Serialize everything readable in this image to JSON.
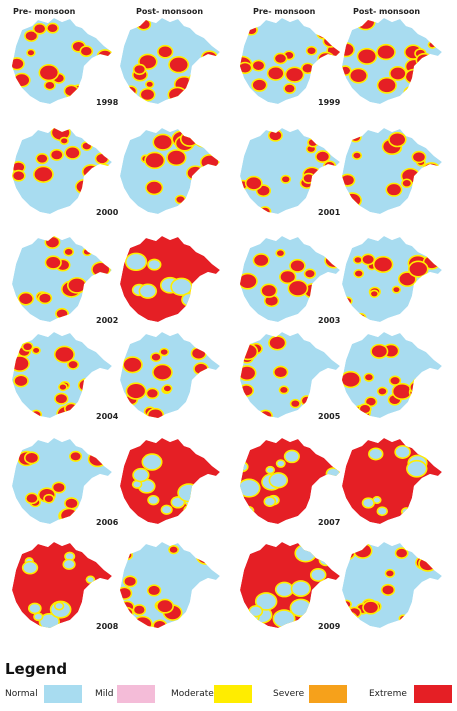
{
  "headers": {
    "left_pre": "Pre- monsoon",
    "left_post": "Post- monsoon",
    "right_pre": "Pre- monsoon",
    "right_post": "Post- monsoon"
  },
  "years": [
    "1998",
    "1999",
    "2000",
    "2001",
    "2002",
    "2003",
    "2004",
    "2005",
    "2006",
    "2007",
    "2008",
    "2009"
  ],
  "legend": {
    "title": "Legend",
    "items": [
      {
        "label": "Normal",
        "color": "#a8dcf0"
      },
      {
        "label": "Mild",
        "color": "#f4bcd8"
      },
      {
        "label": "Moderate",
        "color": "#ffed00"
      },
      {
        "label": "Severe",
        "color": "#f6a11b"
      },
      {
        "label": "Extreme",
        "color": "#e51f25"
      }
    ]
  },
  "maps": [
    {
      "year": "1998",
      "season": "Pre- monsoon",
      "dominant_class": "Normal"
    },
    {
      "year": "1998",
      "season": "Post- monsoon",
      "dominant_class": "Normal"
    },
    {
      "year": "1999",
      "season": "Pre- monsoon",
      "dominant_class": "Normal"
    },
    {
      "year": "1999",
      "season": "Post- monsoon",
      "dominant_class": "Normal"
    },
    {
      "year": "2000",
      "season": "Pre- monsoon",
      "dominant_class": "Normal"
    },
    {
      "year": "2000",
      "season": "Post- monsoon",
      "dominant_class": "Normal"
    },
    {
      "year": "2001",
      "season": "Pre- monsoon",
      "dominant_class": "Normal"
    },
    {
      "year": "2001",
      "season": "Post- monsoon",
      "dominant_class": "Normal"
    },
    {
      "year": "2002",
      "season": "Pre- monsoon",
      "dominant_class": "Normal"
    },
    {
      "year": "2002",
      "season": "Post- monsoon",
      "dominant_class": "Extreme"
    },
    {
      "year": "2003",
      "season": "Pre- monsoon",
      "dominant_class": "Normal"
    },
    {
      "year": "2003",
      "season": "Post- monsoon",
      "dominant_class": "Normal"
    },
    {
      "year": "2004",
      "season": "Pre- monsoon",
      "dominant_class": "Normal"
    },
    {
      "year": "2004",
      "season": "Post- monsoon",
      "dominant_class": "Normal"
    },
    {
      "year": "2005",
      "season": "Pre- monsoon",
      "dominant_class": "Normal"
    },
    {
      "year": "2005",
      "season": "Post- monsoon",
      "dominant_class": "Normal"
    },
    {
      "year": "2006",
      "season": "Pre- monsoon",
      "dominant_class": "Normal"
    },
    {
      "year": "2006",
      "season": "Post- monsoon",
      "dominant_class": "Extreme"
    },
    {
      "year": "2007",
      "season": "Pre- monsoon",
      "dominant_class": "Extreme"
    },
    {
      "year": "2007",
      "season": "Post- monsoon",
      "dominant_class": "Extreme"
    },
    {
      "year": "2008",
      "season": "Pre- monsoon",
      "dominant_class": "Extreme"
    },
    {
      "year": "2008",
      "season": "Post- monsoon",
      "dominant_class": "Normal"
    },
    {
      "year": "2009",
      "season": "Pre- monsoon",
      "dominant_class": "Extreme"
    },
    {
      "year": "2009",
      "season": "Post- monsoon",
      "dominant_class": "Normal"
    }
  ]
}
